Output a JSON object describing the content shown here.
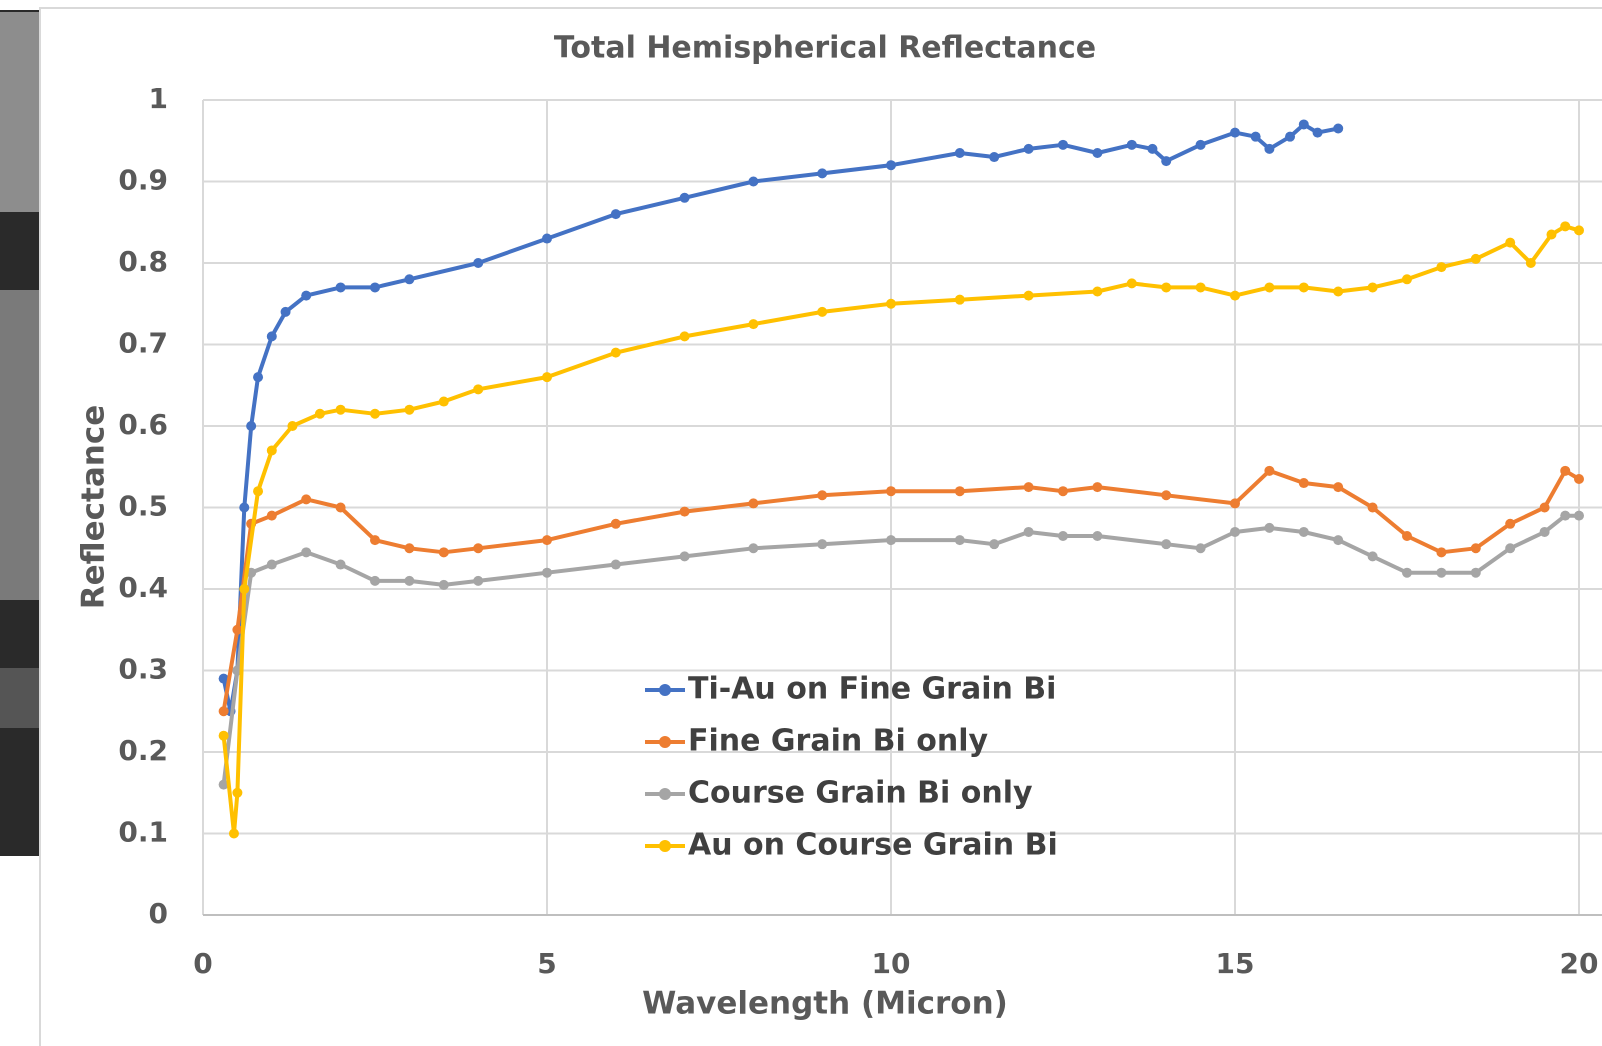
{
  "chart_data": {
    "type": "line",
    "title": "Total Hemispherical Reflectance",
    "x_label": "Wavelength (Micron)",
    "y_label": "Reflectance",
    "xlim": [
      0,
      20
    ],
    "xticks": [
      0,
      5,
      10,
      15,
      20
    ],
    "ylim": [
      0,
      1
    ],
    "yticks": [
      0,
      0.1,
      0.2,
      0.3,
      0.4,
      0.5,
      0.6,
      0.7,
      0.8,
      0.9,
      1
    ],
    "grid": true,
    "series": [
      {
        "name": "Ti-Au on Fine Grain Bi",
        "color": "#4472c4",
        "x": [
          0.3,
          0.4,
          0.5,
          0.6,
          0.7,
          0.8,
          1.0,
          1.2,
          1.5,
          2,
          2.5,
          3,
          4,
          5,
          6,
          7,
          8,
          9,
          10,
          11,
          11.5,
          12,
          12.5,
          13,
          13.5,
          13.8,
          14,
          14.5,
          15,
          15.3,
          15.5,
          15.8,
          16,
          16.2,
          16.5
        ],
        "values": [
          0.29,
          0.25,
          0.3,
          0.5,
          0.6,
          0.66,
          0.71,
          0.74,
          0.76,
          0.77,
          0.77,
          0.78,
          0.8,
          0.83,
          0.86,
          0.88,
          0.9,
          0.91,
          0.92,
          0.935,
          0.93,
          0.94,
          0.945,
          0.935,
          0.945,
          0.94,
          0.925,
          0.945,
          0.96,
          0.955,
          0.94,
          0.955,
          0.97,
          0.96,
          0.965
        ]
      },
      {
        "name": "Fine Grain Bi only",
        "color": "#ed7d31",
        "x": [
          0.3,
          0.5,
          0.7,
          1,
          1.5,
          2,
          2.5,
          3,
          3.5,
          4,
          5,
          6,
          7,
          8,
          9,
          10,
          11,
          12,
          12.5,
          13,
          14,
          15,
          15.5,
          16,
          16.5,
          17,
          17.5,
          18,
          18.5,
          19,
          19.5,
          19.8,
          20
        ],
        "values": [
          0.25,
          0.35,
          0.48,
          0.49,
          0.51,
          0.5,
          0.46,
          0.45,
          0.445,
          0.45,
          0.46,
          0.48,
          0.495,
          0.505,
          0.515,
          0.52,
          0.52,
          0.525,
          0.52,
          0.525,
          0.515,
          0.505,
          0.545,
          0.53,
          0.525,
          0.5,
          0.465,
          0.445,
          0.45,
          0.48,
          0.5,
          0.545,
          0.535
        ]
      },
      {
        "name": "Course Grain Bi only",
        "color": "#a5a5a5",
        "x": [
          0.3,
          0.5,
          0.7,
          1,
          1.5,
          2,
          2.5,
          3,
          3.5,
          4,
          5,
          6,
          7,
          8,
          9,
          10,
          11,
          11.5,
          12,
          12.5,
          13,
          14,
          14.5,
          15,
          15.5,
          16,
          16.5,
          17,
          17.5,
          18,
          18.5,
          19,
          19.5,
          19.8,
          20
        ],
        "values": [
          0.16,
          0.3,
          0.42,
          0.43,
          0.445,
          0.43,
          0.41,
          0.41,
          0.405,
          0.41,
          0.42,
          0.43,
          0.44,
          0.45,
          0.455,
          0.46,
          0.46,
          0.455,
          0.47,
          0.465,
          0.465,
          0.455,
          0.45,
          0.47,
          0.475,
          0.47,
          0.46,
          0.44,
          0.42,
          0.42,
          0.42,
          0.45,
          0.47,
          0.49,
          0.49
        ]
      },
      {
        "name": "Au on Course Grain Bi",
        "color": "#ffc000",
        "x": [
          0.3,
          0.45,
          0.5,
          0.6,
          0.8,
          1,
          1.3,
          1.7,
          2,
          2.5,
          3,
          3.5,
          4,
          5,
          6,
          7,
          8,
          9,
          10,
          11,
          12,
          13,
          13.5,
          14,
          14.5,
          15,
          15.5,
          16,
          16.5,
          17,
          17.5,
          18,
          18.5,
          19,
          19.3,
          19.6,
          19.8,
          20
        ],
        "values": [
          0.22,
          0.1,
          0.15,
          0.4,
          0.52,
          0.57,
          0.6,
          0.615,
          0.62,
          0.615,
          0.62,
          0.63,
          0.645,
          0.66,
          0.69,
          0.71,
          0.725,
          0.74,
          0.75,
          0.755,
          0.76,
          0.765,
          0.775,
          0.77,
          0.77,
          0.76,
          0.77,
          0.77,
          0.765,
          0.77,
          0.78,
          0.795,
          0.805,
          0.825,
          0.8,
          0.835,
          0.845,
          0.84
        ]
      }
    ]
  }
}
